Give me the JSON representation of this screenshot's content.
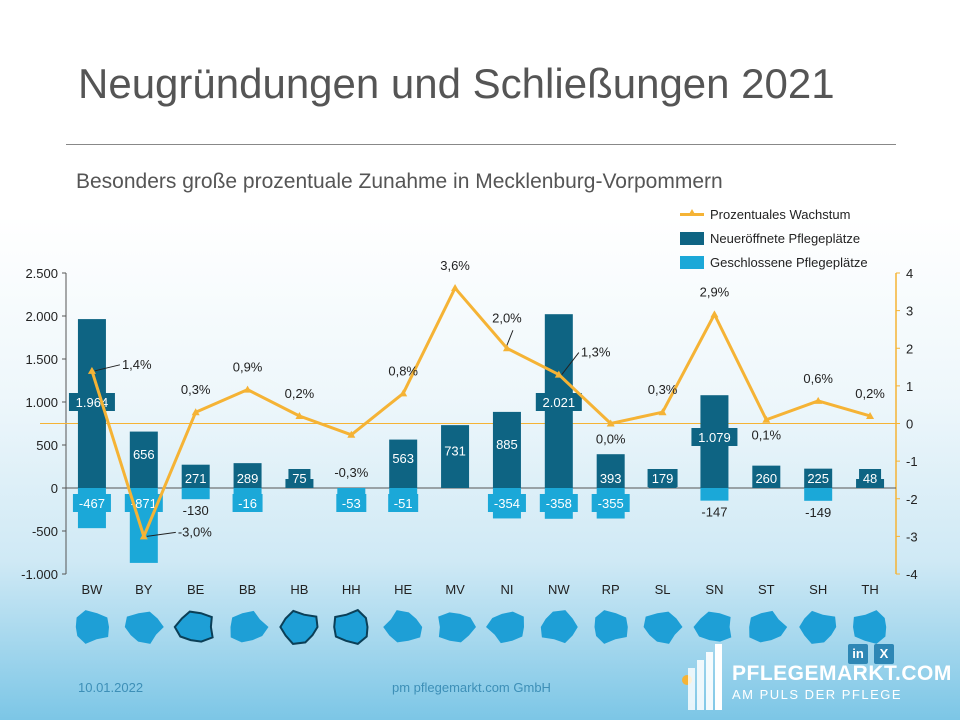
{
  "title": "Neugründungen und Schließungen 2021",
  "subtitle": "Besonders große prozentuale Zunahme in Mecklenburg-Vorpommern",
  "legend": {
    "growth": "Prozentuales Wachstum",
    "opened": "Neueröffnete Pflegeplätze",
    "closed": "Geschlossene Pflegeplätze"
  },
  "colors": {
    "opened": "#0e6483",
    "closed": "#1ba8d8",
    "growth": "#f5b335",
    "map": "#1e9fd6"
  },
  "chart_data": {
    "type": "bar",
    "categories": [
      "BW",
      "BY",
      "BE",
      "BB",
      "HB",
      "HH",
      "HE",
      "MV",
      "NI",
      "NW",
      "RP",
      "SL",
      "SN",
      "ST",
      "SH",
      "TH"
    ],
    "series": [
      {
        "name": "Neueröffnete Pflegeplätze",
        "values": [
          1964,
          656,
          271,
          289,
          75,
          0,
          563,
          731,
          885,
          2021,
          393,
          179,
          1079,
          260,
          225,
          48
        ],
        "labels": [
          "1.964",
          "656",
          "271",
          "289",
          "75",
          "",
          "563",
          "731",
          "885",
          "2.021",
          "393",
          "179",
          "1.079",
          "260",
          "225",
          "48"
        ]
      },
      {
        "name": "Geschlossene Pflegeplätze",
        "values": [
          -467,
          -871,
          -130,
          -16,
          0,
          -53,
          -51,
          0,
          -354,
          -358,
          -355,
          0,
          -147,
          0,
          -149,
          0
        ],
        "labels": [
          "-467",
          "-871",
          "-130",
          "-16",
          "",
          "-53",
          "-51",
          "",
          "-354",
          "-358",
          "-355",
          "",
          "-147",
          "",
          "-149",
          ""
        ]
      },
      {
        "name": "Prozentuales Wachstum",
        "values": [
          1.4,
          -3.0,
          0.3,
          0.9,
          0.2,
          -0.3,
          0.8,
          3.6,
          2.0,
          1.3,
          0.0,
          0.3,
          2.9,
          0.1,
          0.6,
          0.2
        ],
        "labels": [
          "1,4%",
          "-3,0%",
          "0,3%",
          "0,9%",
          "0,2%",
          "-0,3%",
          "0,8%",
          "3,6%",
          "2,0%",
          "1,3%",
          "0,0%",
          "0,3%",
          "2,9%",
          "0,1%",
          "0,6%",
          "0,2%"
        ]
      }
    ],
    "ylim": [
      -1000,
      2500
    ],
    "y_ticks": [
      2500,
      2000,
      1500,
      1000,
      500,
      0,
      -500,
      -1000
    ],
    "y_tick_labels": [
      "2.500",
      "2.000",
      "1.500",
      "1.000",
      "500",
      "0",
      "-500",
      "-1.000"
    ],
    "y2lim": [
      -4,
      4
    ],
    "y2_ticks": [
      4,
      3,
      2,
      1,
      0,
      -1,
      -2,
      -3,
      -4
    ],
    "y2_tick_labels": [
      "4",
      "3",
      "2",
      "1",
      "0",
      "-1",
      "-2",
      "-3",
      "-4"
    ],
    "legend_position": "top-right"
  },
  "footer": {
    "date": "10.01.2022",
    "company": "pm pflegemarkt.com GmbH"
  },
  "brand": {
    "name": "PFLEGEMARKT.COM",
    "tagline": "AM PULS DER PFLEGE"
  },
  "social": {
    "linkedin": "in",
    "xing": "X"
  }
}
